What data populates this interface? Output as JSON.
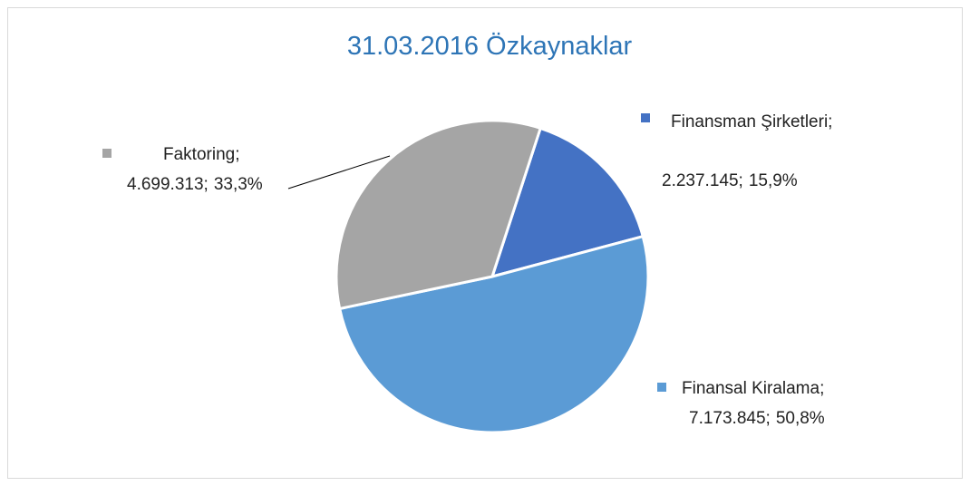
{
  "chart_data": {
    "type": "pie",
    "title": "31.03.2016 Özkaynaklar",
    "categories": [
      "Finansman Şirketleri",
      "Finansal Kiralama",
      "Faktoring"
    ],
    "values": [
      2237145,
      7173845,
      4699313
    ],
    "value_labels": [
      "2.237.145",
      "7.173.845",
      "4.699.313"
    ],
    "percent_labels": [
      "15,9%",
      "50,8%",
      "33,3%"
    ],
    "label_separator": ";",
    "colors": [
      "#4472c4",
      "#5b9bd5",
      "#a5a5a5"
    ]
  }
}
